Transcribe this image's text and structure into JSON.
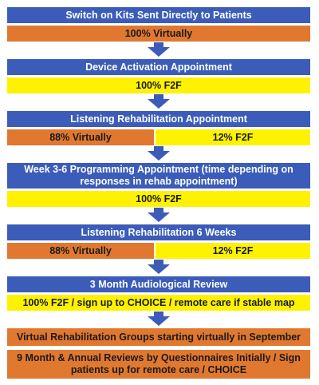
{
  "steps": [
    {
      "title": "Switch on Kits Sent Directly to Patients",
      "outcome": "100% Virtually"
    },
    {
      "title": "Device Activation Appointment",
      "outcome": "100% F2F"
    },
    {
      "title": "Listening Rehabilitation Appointment",
      "split_left": "88% Virtually",
      "split_right": "12% F2F"
    },
    {
      "title": "Week 3-6 Programming Appointment (time depending on responses in rehab appointment)",
      "outcome": "100% F2F"
    },
    {
      "title": "Listening Rehabilitation 6 Weeks",
      "split_left": "88% Virtually",
      "split_right": "12% F2F"
    },
    {
      "title": "3 Month Audiological Review",
      "outcome": "100% F2F / sign up to CHOICE / remote care if stable map"
    }
  ],
  "final_boxes": [
    "Virtual Rehabilitation Groups starting virtually in September",
    "9 Month & Annual Reviews by Questionnaires Initially / Sign patients up for remote care / CHOICE"
  ],
  "colors": {
    "blue": "#3b5cb8",
    "orange": "#e0782f",
    "yellow": "#fff200"
  }
}
